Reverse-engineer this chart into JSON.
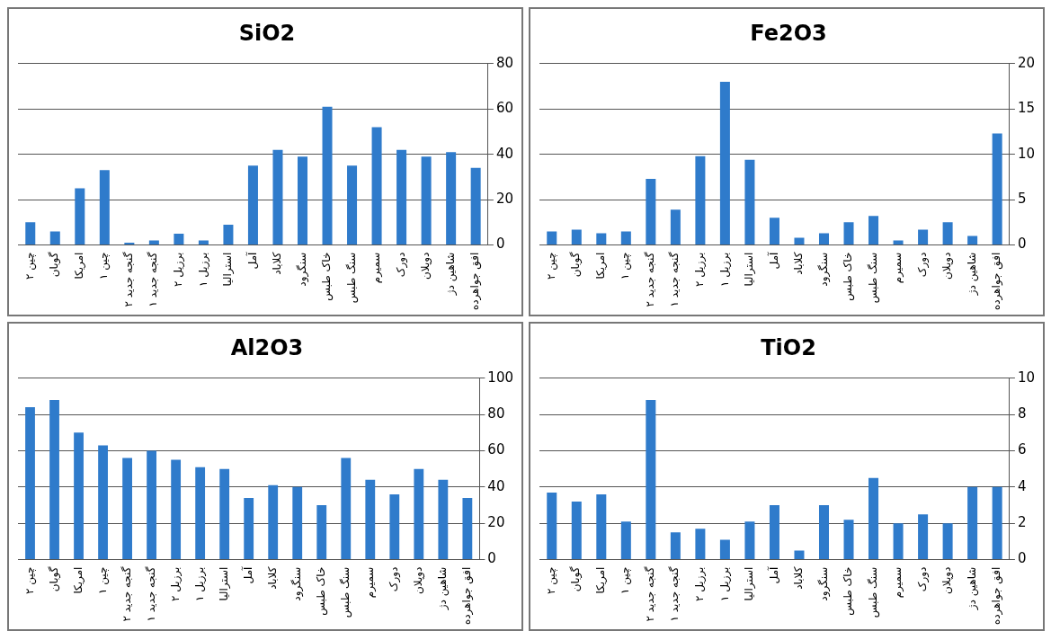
{
  "chart_data": [
    {
      "type": "bar",
      "title": "SiO2",
      "categories": [
        "چین ۲",
        "گوبان",
        "امریکا",
        "چین ۱",
        "گنجه جدید ۲",
        "گنجه جدید ۱",
        "برزیل ۲",
        "برزیل ۱",
        "استرالیا",
        "آمل",
        "کلاباد",
        "سنگرود",
        "خاک طبس",
        "سنگ طبس",
        "سمیرم",
        "دورک",
        "دوپلان",
        "شاهین دژ",
        "افق جواهرده"
      ],
      "values": [
        10,
        6,
        25,
        33,
        1,
        2,
        5,
        2,
        9,
        35,
        42,
        39,
        61,
        35,
        52,
        42,
        39,
        41,
        34
      ],
      "color": "#2f7bcb",
      "ylim": [
        0,
        80
      ],
      "yticks": [
        0,
        20,
        40,
        60,
        80
      ],
      "grid": "y"
    },
    {
      "type": "bar",
      "title": "Fe2O3",
      "categories": [
        "چین ۲",
        "گوبان",
        "امریکا",
        "چین ۱",
        "گنجه جدید ۲",
        "گنجه جدید ۱",
        "برزیل ۲",
        "برزیل ۱",
        "استرالیا",
        "آمل",
        "کلاباد",
        "سنگرود",
        "خاک طبس",
        "سنگ طبس",
        "سمیرم",
        "دورک",
        "دوپلان",
        "شاهین دژ",
        "افق جواهرده"
      ],
      "values": [
        1.5,
        1.7,
        1.3,
        1.5,
        7.3,
        3.9,
        9.8,
        18,
        9.4,
        3,
        0.8,
        1.3,
        2.5,
        3.2,
        0.5,
        1.7,
        2.5,
        1,
        12.3
      ],
      "color": "#2f7bcb",
      "ylim": [
        0,
        20
      ],
      "yticks": [
        0,
        5,
        10,
        15,
        20
      ],
      "grid": "y"
    },
    {
      "type": "bar",
      "title": "Al2O3",
      "categories": [
        "چین ۲",
        "گوبان",
        "امریکا",
        "چین ۱",
        "گنجه جدید ۲",
        "گنجه جدید ۱",
        "برزیل ۲",
        "برزیل ۱",
        "استرالیا",
        "آمل",
        "کلاباد",
        "سنگرود",
        "خاک طبس",
        "سنگ طبس",
        "سمیرم",
        "دورک",
        "دوپلان",
        "شاهین دژ",
        "افق جواهرده"
      ],
      "values": [
        84,
        88,
        70,
        63,
        56,
        60,
        55,
        51,
        50,
        34,
        41,
        40,
        30,
        56,
        44,
        36,
        50,
        44,
        34
      ],
      "color": "#2f7bcb",
      "ylim": [
        0,
        100
      ],
      "yticks": [
        0,
        20,
        40,
        60,
        80,
        100
      ],
      "grid": "y"
    },
    {
      "type": "bar",
      "title": "TiO2",
      "categories": [
        "چین ۲",
        "گوبان",
        "امریکا",
        "چین ۱",
        "گنجه جدید ۲",
        "گنجه جدید ۱",
        "برزیل ۲",
        "برزیل ۱",
        "استرالیا",
        "آمل",
        "کلاباد",
        "سنگرود",
        "خاک طبس",
        "سنگ طبس",
        "سمیرم",
        "دورک",
        "دوپلان",
        "شاهین دژ",
        "افق جواهرده"
      ],
      "values": [
        3.7,
        3.2,
        3.6,
        2.1,
        8.8,
        1.5,
        1.7,
        1.1,
        2.1,
        3,
        0.5,
        3,
        2.2,
        4.5,
        2,
        2.5,
        2,
        4,
        4
      ],
      "color": "#2f7bcb",
      "ylim": [
        0,
        10
      ],
      "yticks": [
        0,
        2,
        4,
        6,
        8,
        10
      ],
      "grid": "y"
    }
  ]
}
